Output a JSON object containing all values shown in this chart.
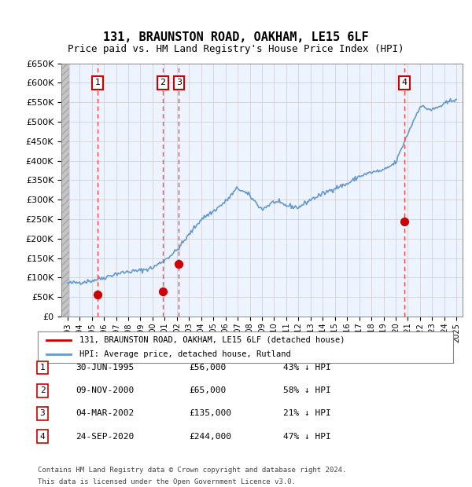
{
  "title": "131, BRAUNSTON ROAD, OAKHAM, LE15 6LF",
  "subtitle": "Price paid vs. HM Land Registry's House Price Index (HPI)",
  "sale_dates": [
    "1995-06-30",
    "2000-11-09",
    "2002-03-04",
    "2020-09-24"
  ],
  "sale_prices": [
    56000,
    65000,
    135000,
    244000
  ],
  "sale_labels": [
    "1",
    "2",
    "3",
    "4"
  ],
  "table_rows": [
    [
      "1",
      "30-JUN-1995",
      "£56,000",
      "43% ↓ HPI"
    ],
    [
      "2",
      "09-NOV-2000",
      "£65,000",
      "58% ↓ HPI"
    ],
    [
      "3",
      "04-MAR-2002",
      "£135,000",
      "21% ↓ HPI"
    ],
    [
      "4",
      "24-SEP-2020",
      "£244,000",
      "47% ↓ HPI"
    ]
  ],
  "legend_entries": [
    "131, BRAUNSTON ROAD, OAKHAM, LE15 6LF (detached house)",
    "HPI: Average price, detached house, Rutland"
  ],
  "footer": [
    "Contains HM Land Registry data © Crown copyright and database right 2024.",
    "This data is licensed under the Open Government Licence v3.0."
  ],
  "ylim": [
    0,
    650000
  ],
  "yticks": [
    0,
    50000,
    100000,
    150000,
    200000,
    250000,
    300000,
    350000,
    400000,
    450000,
    500000,
    550000,
    600000,
    650000
  ],
  "sale_color": "#cc0000",
  "hpi_color": "#6699cc",
  "vline_color": "#ff4444",
  "background_color": "#ddeeff",
  "plot_bg": "#eef4ff",
  "hatch_color": "#bbccdd",
  "grid_color": "#cccccc"
}
